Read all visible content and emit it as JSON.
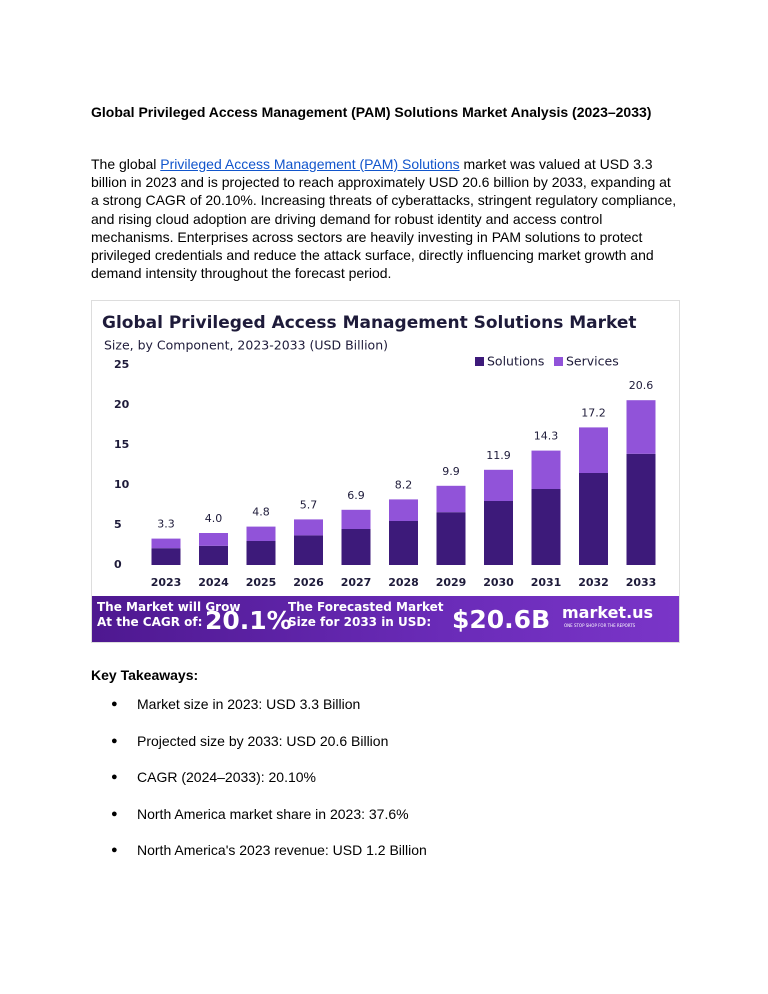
{
  "heading": "Global Privileged Access Management (PAM) Solutions Market Analysis (2023–2033)",
  "paragraph": {
    "before": "The global ",
    "link": "Privileged Access Management (PAM) Solutions",
    "after": " market was valued at USD 3.3 billion in 2023 and is projected to reach approximately USD 20.6 billion by 2033, expanding at a strong CAGR of 20.10%. Increasing threats of cyberattacks, stringent regulatory compliance, and rising cloud adoption are driving demand for robust identity and access control mechanisms. Enterprises across sectors are heavily investing in PAM solutions to protect privileged credentials and reduce the attack surface, directly influencing market growth and demand intensity throughout the forecast period."
  },
  "chart_data": {
    "type": "stacked_bar",
    "title": "Global Privileged Access Management  Solutions Market",
    "subtitle": "Size, by Component, 2023-2033 (USD Billion)",
    "categories": [
      "2023",
      "2024",
      "2025",
      "2026",
      "2027",
      "2028",
      "2029",
      "2030",
      "2031",
      "2032",
      "2033"
    ],
    "series": [
      {
        "name": "Solutions",
        "color": "#3d1a7a",
        "values": [
          2.1,
          2.4,
          3.0,
          3.7,
          4.5,
          5.5,
          6.6,
          8.0,
          9.5,
          11.5,
          13.9
        ]
      },
      {
        "name": "Services",
        "color": "#9153d9",
        "values": [
          1.2,
          1.6,
          1.8,
          2.0,
          2.4,
          2.7,
          3.3,
          3.9,
          4.8,
          5.7,
          6.7
        ]
      }
    ],
    "totals": [
      3.3,
      4.0,
      4.8,
      5.7,
      6.9,
      8.2,
      9.9,
      11.9,
      14.3,
      17.2,
      20.6
    ],
    "total_labels": [
      "3.3",
      "4.0",
      "4.8",
      "5.7",
      "6.9",
      "8.2",
      "9.9",
      "11.9",
      "14.3",
      "17.2",
      "20.6"
    ],
    "ylim": [
      0,
      25
    ],
    "yticks": [
      0,
      5,
      10,
      15,
      20,
      25
    ],
    "grid": false,
    "legend": "top-right"
  },
  "banner": {
    "cagr_label": [
      "The Market will Grow",
      "At the CAGR of:"
    ],
    "cagr_value": "20.1%",
    "forecast_label": [
      "The Forecasted Market",
      "Size for 2033 in USD:"
    ],
    "forecast_value": "$20.6B",
    "brand": "market.us",
    "tagline": "ONE STOP SHOP FOR THE REPORTS"
  },
  "takeaways": {
    "title": "Key Takeaways:",
    "items": [
      "Market size in 2023: USD 3.3 Billion",
      "Projected size by 2033: USD 20.6 Billion",
      "CAGR (2024–2033): 20.10%",
      "North America market share in 2023: 37.6%",
      "North America's 2023 revenue: USD 1.2 Billion"
    ]
  }
}
